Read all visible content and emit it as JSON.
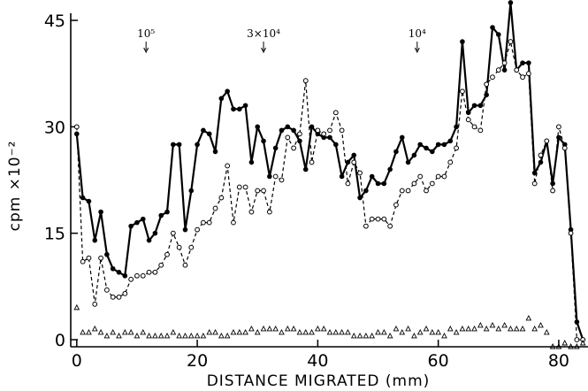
{
  "chart_data": {
    "type": "line",
    "title": "",
    "xlabel": "DISTANCE   MIGRATED  (mm)",
    "ylabel": "cpm ×10⁻²",
    "xlim": [
      -1,
      85
    ],
    "ylim": [
      -1,
      46
    ],
    "x_ticks": [
      0,
      20,
      40,
      60,
      80
    ],
    "y_ticks": [
      0,
      15,
      30,
      45
    ],
    "grid": false,
    "legend": "none",
    "markers": [
      {
        "label": "10⁵",
        "x": 11.5
      },
      {
        "label": "3×10⁴",
        "x": 31.0
      },
      {
        "label": "10⁴",
        "x": 56.5
      }
    ],
    "series": [
      {
        "marker": "filled-circle",
        "line": "solid",
        "color": "#000000",
        "x": [
          0,
          1,
          2,
          3,
          4,
          5,
          6,
          7,
          8,
          9,
          10,
          11,
          12,
          13,
          14,
          15,
          16,
          17,
          18,
          19,
          20,
          21,
          22,
          23,
          24,
          25,
          26,
          27,
          28,
          29,
          30,
          31,
          32,
          33,
          34,
          35,
          36,
          37,
          38,
          39,
          40,
          41,
          42,
          43,
          44,
          45,
          46,
          47,
          48,
          49,
          50,
          51,
          52,
          53,
          54,
          55,
          56,
          57,
          58,
          59,
          60,
          61,
          62,
          63,
          64,
          65,
          66,
          67,
          68,
          69,
          70,
          71,
          72,
          73,
          74,
          75,
          76,
          77,
          78,
          79,
          80,
          81,
          82,
          83,
          84
        ],
        "y": [
          29,
          20,
          19.5,
          14,
          18,
          12,
          10,
          9.5,
          9,
          16,
          16.5,
          17,
          14,
          15,
          17.5,
          18,
          27.5,
          27.5,
          15.5,
          21,
          27.5,
          29.5,
          29,
          26.5,
          34,
          35,
          32.5,
          32.5,
          33,
          25,
          30,
          28,
          23,
          27,
          29.5,
          30,
          29.5,
          28,
          24,
          30,
          29,
          28.5,
          28.5,
          27.5,
          23,
          25,
          26,
          20,
          21,
          23,
          22,
          22,
          24,
          26.5,
          28.5,
          25,
          26,
          27.5,
          27,
          26.5,
          27.5,
          27.5,
          28,
          30,
          42,
          32,
          33,
          33,
          34.5,
          44,
          43,
          38,
          47.5,
          38,
          39,
          39,
          23.5,
          25,
          28,
          22,
          28.5,
          27.5,
          15.5,
          2.5,
          0
        ]
      },
      {
        "marker": "open-circle",
        "line": "dashed",
        "color": "#000000",
        "x": [
          0,
          1,
          2,
          3,
          4,
          5,
          6,
          7,
          8,
          9,
          10,
          11,
          12,
          13,
          14,
          15,
          16,
          17,
          18,
          19,
          20,
          21,
          22,
          23,
          24,
          25,
          26,
          27,
          28,
          29,
          30,
          31,
          32,
          33,
          34,
          35,
          36,
          37,
          38,
          39,
          40,
          41,
          42,
          43,
          44,
          45,
          46,
          47,
          48,
          49,
          50,
          51,
          52,
          53,
          54,
          55,
          56,
          57,
          58,
          59,
          60,
          61,
          62,
          63,
          64,
          65,
          66,
          67,
          68,
          69,
          70,
          71,
          72,
          73,
          74,
          75,
          76,
          77,
          78,
          79,
          80,
          81,
          82,
          83,
          84
        ],
        "y": [
          30,
          11,
          11.5,
          5,
          11.5,
          7,
          6,
          6,
          6.5,
          8.5,
          9,
          9,
          9.5,
          9.5,
          10.5,
          12,
          15,
          13,
          10.5,
          13,
          15.5,
          16.5,
          16.5,
          18.5,
          20,
          24.5,
          16.5,
          21.5,
          21.5,
          18,
          21,
          21,
          18,
          23,
          22.5,
          28.5,
          27,
          29,
          36.5,
          25,
          29.5,
          29,
          29.5,
          32,
          29.5,
          22,
          25,
          23.5,
          16,
          17,
          17,
          17,
          16,
          19,
          21,
          21,
          22,
          23,
          21,
          22,
          23,
          23,
          25,
          27,
          35,
          31,
          30,
          29.5,
          36,
          37,
          38,
          39,
          42,
          38,
          37,
          37.5,
          22,
          26,
          28,
          21,
          30,
          27,
          15,
          0,
          0
        ]
      },
      {
        "marker": "open-triangle",
        "line": "none",
        "color": "#000000",
        "x": [
          0,
          1,
          2,
          3,
          4,
          5,
          6,
          7,
          8,
          9,
          10,
          11,
          12,
          13,
          14,
          15,
          16,
          17,
          18,
          19,
          20,
          21,
          22,
          23,
          24,
          25,
          26,
          27,
          28,
          29,
          30,
          31,
          32,
          33,
          34,
          35,
          36,
          37,
          38,
          39,
          40,
          41,
          42,
          43,
          44,
          45,
          46,
          47,
          48,
          49,
          50,
          51,
          52,
          53,
          54,
          55,
          56,
          57,
          58,
          59,
          60,
          61,
          62,
          63,
          64,
          65,
          66,
          67,
          68,
          69,
          70,
          71,
          72,
          73,
          74,
          75,
          76,
          77,
          78,
          79,
          80,
          81,
          82,
          83,
          84
        ],
        "y": [
          4.5,
          1,
          1,
          1.5,
          1,
          0.5,
          1,
          0.5,
          1,
          1,
          0.5,
          1,
          0.5,
          0.5,
          0.5,
          0.5,
          1,
          0.5,
          0.5,
          0.5,
          0.5,
          0.5,
          1,
          1,
          0.5,
          0.5,
          1,
          1,
          1,
          1.5,
          1,
          1.5,
          1.5,
          1.5,
          1,
          1.5,
          1.5,
          1,
          1,
          1,
          1.5,
          1.5,
          1,
          1,
          1,
          1,
          0.5,
          0.5,
          0.5,
          0.5,
          1,
          1,
          0.5,
          1.5,
          1,
          1.5,
          0.5,
          1,
          1.5,
          1,
          1,
          0.5,
          1.5,
          1,
          1.5,
          1.5,
          1.5,
          2,
          1.5,
          2,
          1.5,
          2,
          1.5,
          1.5,
          1.5,
          3,
          1.5,
          2,
          1,
          -1,
          -1,
          -0.5,
          -1,
          -1,
          -0.5
        ]
      }
    ]
  }
}
